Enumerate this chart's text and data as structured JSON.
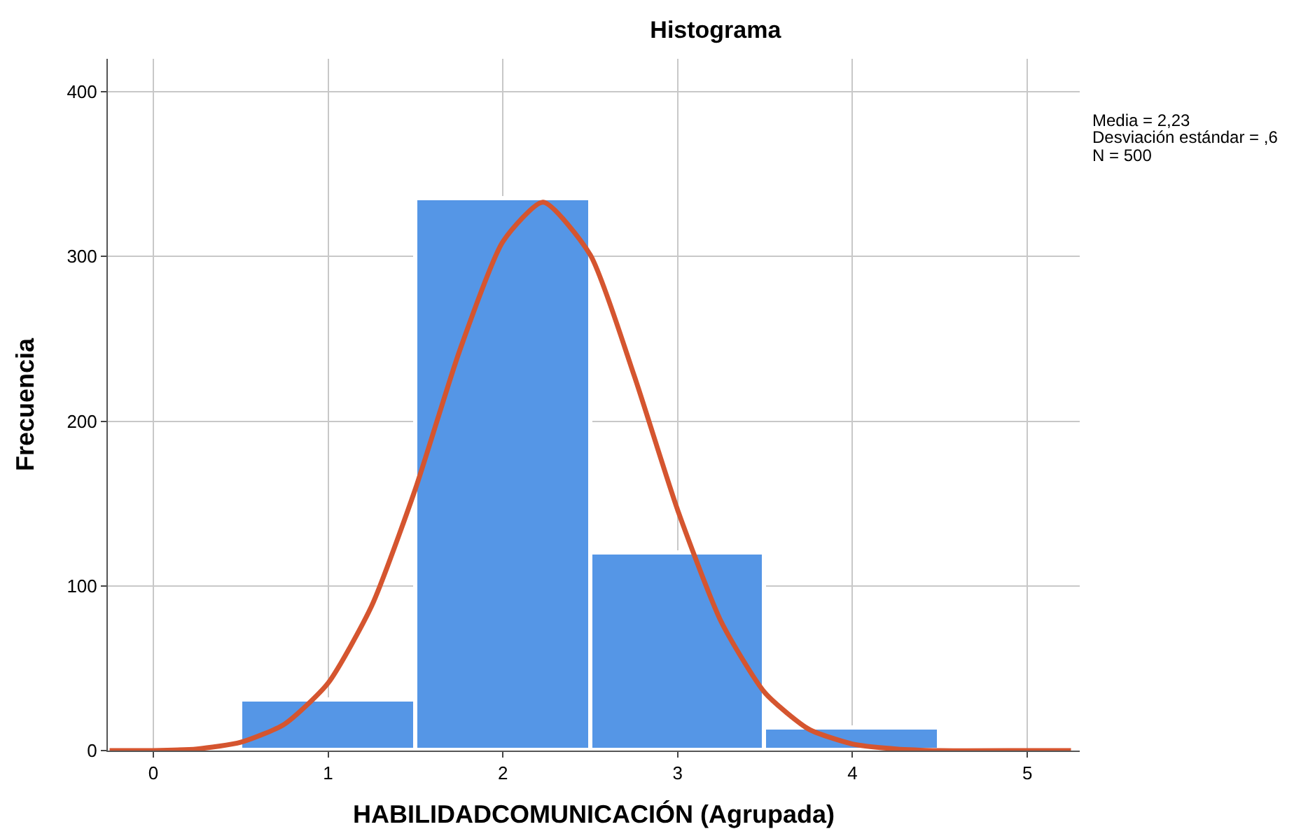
{
  "chart_data": {
    "type": "histogram",
    "title": "Histograma",
    "xlabel": "HABILIDADCOMUNICACIÓN (Agrupada)",
    "ylabel": "Frecuencia",
    "bins": [
      0.5,
      1.5,
      2.5,
      3.5,
      4.5
    ],
    "values": [
      31,
      335,
      120,
      14
    ],
    "color": "#5596e6",
    "series": [
      {
        "type": "line",
        "color": "#d5552f",
        "x": [
          -0.25,
          0,
          0.25,
          0.5,
          0.75,
          1,
          1.25,
          1.5,
          1.75,
          2,
          2.23,
          2.5,
          2.75,
          3,
          3.25,
          3.5,
          3.75,
          4,
          4.25,
          4.5,
          5,
          5.25
        ],
        "values": [
          0,
          0,
          1,
          5,
          16,
          41,
          88,
          159,
          242,
          309,
          333,
          301,
          228,
          146,
          78,
          35,
          13,
          4,
          1,
          0,
          0,
          0
        ]
      }
    ],
    "xlim": [
      -0.26,
      5.3
    ],
    "xticks": [
      0,
      1,
      2,
      3,
      4,
      5
    ],
    "ylim": [
      0,
      420
    ],
    "yticks": [
      0,
      100,
      200,
      300,
      400
    ],
    "grid": true,
    "annotations": [
      "Media = 2,23",
      "Desviación estándar = ,6",
      "N = 500"
    ]
  }
}
